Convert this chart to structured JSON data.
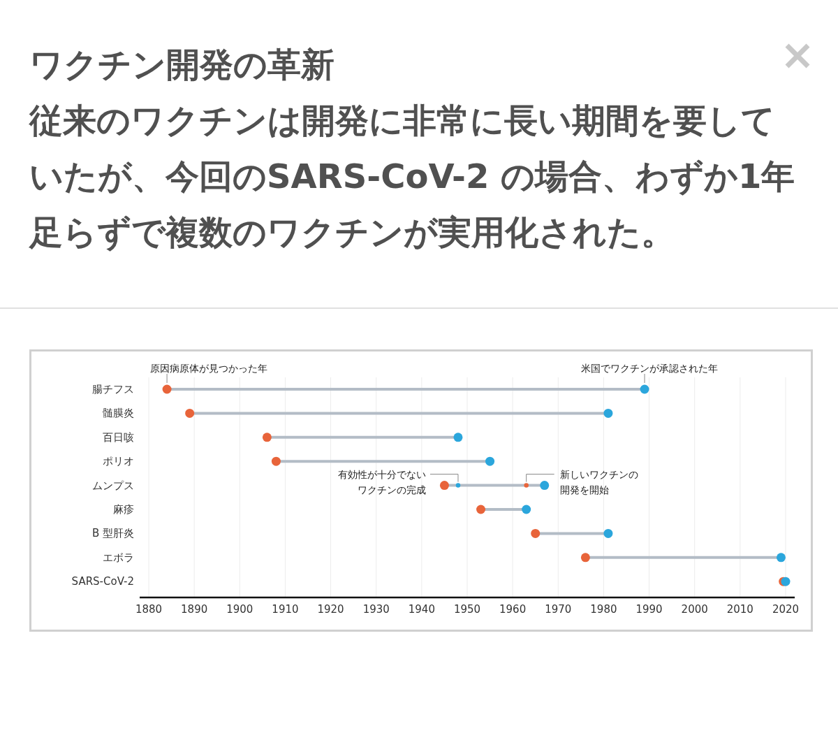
{
  "chart_data": {
    "type": "scatter",
    "orientation": "horizontal",
    "title": "ワクチン開発の革新",
    "subtitle": "従来のワクチンは開発に非常に長い期間を要していたが、今回のSARS-CoV-2 の場合、わずか1年足らずで複数のワクチンが実用化された。",
    "categories": [
      "腸チフス",
      "髄膜炎",
      "百日咳",
      "ポリオ",
      "ムンプス",
      "麻疹",
      "B 型肝炎",
      "エボラ",
      "SARS-CoV-2"
    ],
    "series": [
      {
        "color": "#e8643a",
        "values": [
          1884,
          1889,
          1906,
          1908,
          1945,
          1953,
          1965,
          1976,
          2019.5
        ],
        "sizes": [
          1,
          1,
          1,
          1,
          1,
          1,
          1,
          1,
          1
        ]
      },
      {
        "color": "#2ba6dc",
        "values": [
          1989,
          1981,
          1948,
          1955,
          1967,
          1963,
          1981,
          2019,
          2020
        ],
        "sizes": [
          1,
          1,
          1,
          1,
          1,
          1,
          1,
          1,
          1
        ]
      },
      {
        "color": "#2ba6dc",
        "values": [
          null,
          null,
          null,
          null,
          1948,
          null,
          null,
          null,
          null
        ],
        "sizes": [
          null,
          null,
          null,
          null,
          0.25,
          null,
          null,
          null,
          null
        ]
      },
      {
        "color": "#e8643a",
        "values": [
          null,
          null,
          null,
          null,
          1963,
          null,
          null,
          null,
          null
        ],
        "sizes": [
          null,
          null,
          null,
          null,
          0.25,
          null,
          null,
          null,
          null
        ]
      }
    ],
    "annotations": [
      {
        "text": "原因病原体が見つかった年",
        "x": 1884,
        "y": "腸チフス"
      },
      {
        "text": "米国でワクチンが承認された年",
        "x": 1989,
        "y": "腸チフス"
      },
      {
        "text": "有効性が十分でないワクチンの完成",
        "x": 1948,
        "y": "ムンプス"
      },
      {
        "text": "新しいワクチンの開発を開始",
        "x": 1963,
        "y": "ムンプス"
      }
    ],
    "xlim": [
      1878,
      2022
    ],
    "xticks": [
      1880,
      1890,
      1900,
      1910,
      1920,
      1930,
      1940,
      1950,
      1960,
      1970,
      1980,
      1990,
      2000,
      2010,
      2020
    ],
    "grid": "x",
    "marker": "circle"
  }
}
